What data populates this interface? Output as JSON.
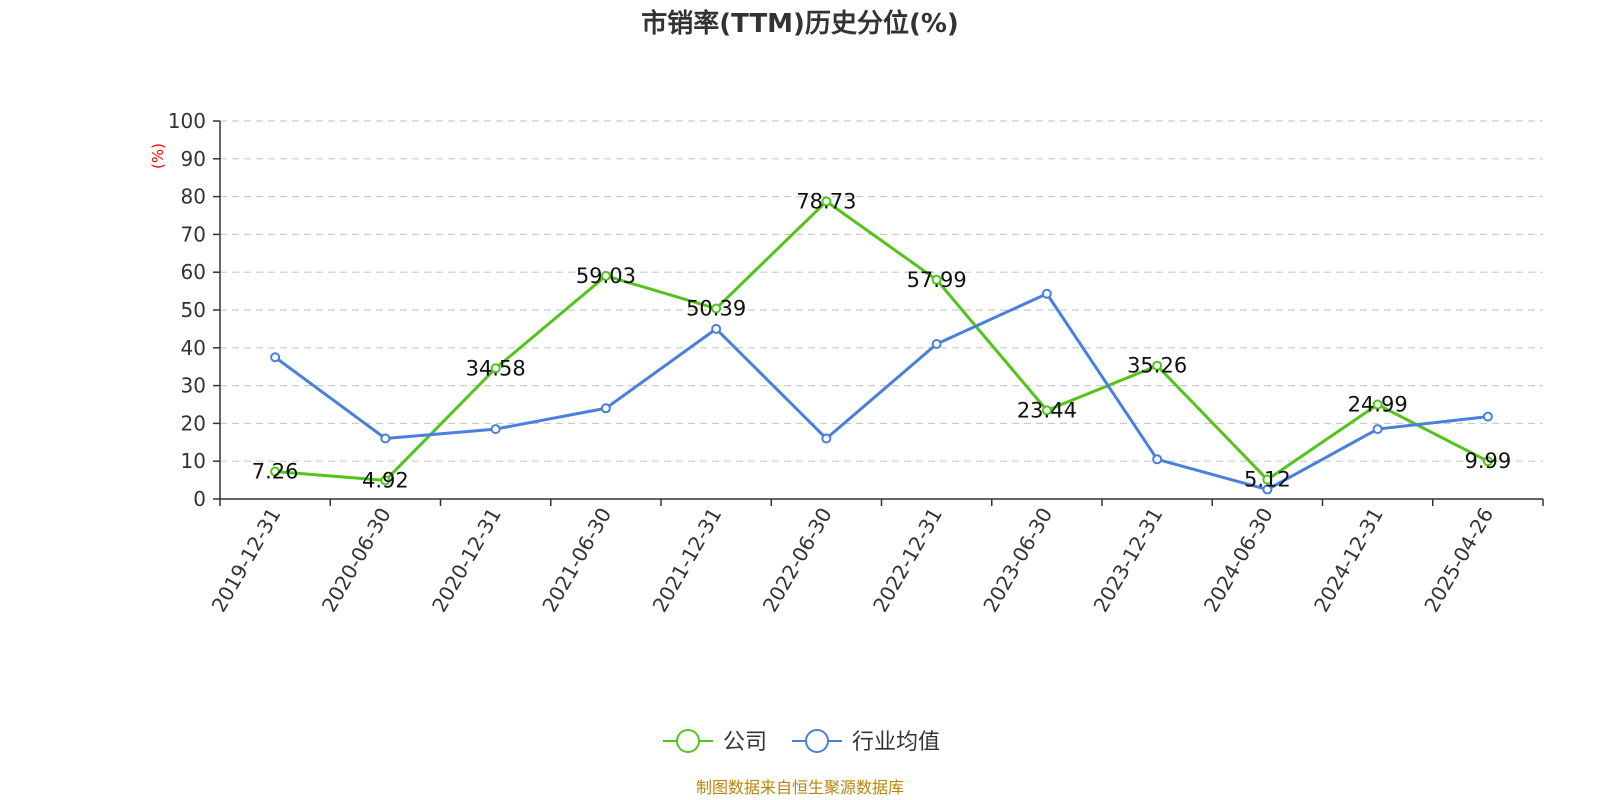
{
  "chart_data": {
    "type": "line",
    "title": "市销率(TTM)历史分位(%)",
    "ylabel": "(%)",
    "ylim": [
      0,
      100
    ],
    "yticks": [
      0,
      10,
      20,
      30,
      40,
      50,
      60,
      70,
      80,
      90,
      100
    ],
    "grid": true,
    "legend_position": "bottom",
    "categories": [
      "2019-12-31",
      "2020-06-30",
      "2020-12-31",
      "2021-06-30",
      "2021-12-31",
      "2022-06-30",
      "2022-12-31",
      "2023-06-30",
      "2023-12-31",
      "2024-06-30",
      "2024-12-31",
      "2025-04-26"
    ],
    "series": [
      {
        "name": "公司",
        "color": "#52c41a",
        "values": [
          7.26,
          4.92,
          34.58,
          59.03,
          50.39,
          78.73,
          57.99,
          23.44,
          35.26,
          5.12,
          24.99,
          9.99
        ],
        "labels": [
          "7.26",
          "4.92",
          "34.58",
          "59.03",
          "50.39",
          "78.73",
          "57.99",
          "23.44",
          "35.26",
          "5.12",
          "24.99",
          "9.99"
        ]
      },
      {
        "name": "行业均值",
        "color": "#4a7fdc",
        "values": [
          37.5,
          16,
          18.5,
          24,
          45,
          16,
          41,
          54.3,
          10.5,
          2.5,
          18.5,
          21.8
        ]
      }
    ]
  },
  "colors": {
    "axis": "#333333",
    "grid": "#cccccc",
    "unit": "#ff0000",
    "source": "#b8860b"
  },
  "footer": {
    "source": "制图数据来自恒生聚源数据库"
  }
}
